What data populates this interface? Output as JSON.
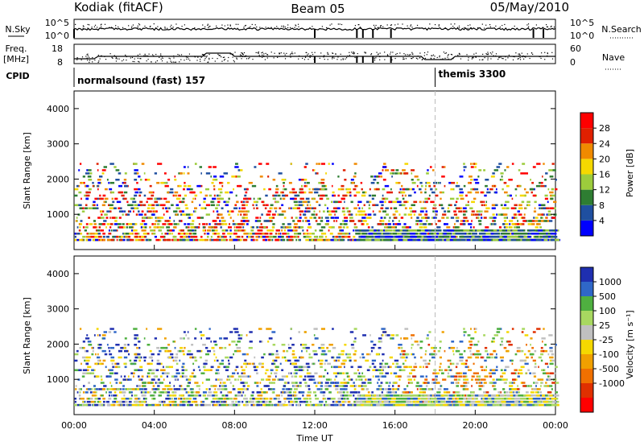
{
  "header": {
    "station": "Kodiak (fitACF)",
    "beam": "Beam 05",
    "date": "05/May/2010"
  },
  "strip_nsky": {
    "left_label": "N.Sky",
    "right_label": "N.Search",
    "ticks_left": [
      "10^5",
      "10^0"
    ],
    "ticks_right": [
      "10^5",
      "10^0"
    ]
  },
  "strip_freq": {
    "left_label_1": "Freq.",
    "left_label_2": "[MHz]",
    "right_label": "Nave",
    "ticks_left": [
      "18",
      "8"
    ],
    "ticks_right": [
      "60",
      "0"
    ]
  },
  "cpid": {
    "label": "CPID",
    "mode_1": "normalsound (fast) 157",
    "mode_2": "themis 3300",
    "switch_time_h": 18.0
  },
  "colors": {
    "power": [
      "#0000ff",
      "#1f4fa0",
      "#2e7d32",
      "#9ccc3c",
      "#f5d800",
      "#f08a00",
      "#e02000",
      "#ff0000"
    ],
    "velocity": [
      "#1f2fb0",
      "#2f67c8",
      "#4fb040",
      "#a8d860",
      "#c0c0c0",
      "#f5d800",
      "#f0a000",
      "#f07000",
      "#e03000",
      "#ff0000"
    ]
  },
  "chart_data": [
    {
      "type": "heatmap",
      "panel": "power",
      "ylabel": "Slant Range [km]",
      "ylim": [
        0,
        4500
      ],
      "yticks": [
        "1000",
        "2000",
        "3000",
        "4000"
      ],
      "x_range_h": [
        0,
        24
      ],
      "colorbar_label": "Power [dB]",
      "colorbar_ticks": [
        "4",
        "8",
        "12",
        "16",
        "20",
        "24",
        "28"
      ]
    },
    {
      "type": "heatmap",
      "panel": "velocity",
      "ylabel": "Slant Range [km]",
      "ylim": [
        0,
        4500
      ],
      "yticks": [
        "1000",
        "2000",
        "3000",
        "4000"
      ],
      "x_range_h": [
        0,
        24
      ],
      "xlabel": "Time UT",
      "xticks": [
        "00:00",
        "04:00",
        "08:00",
        "12:00",
        "16:00",
        "20:00",
        "00:00"
      ],
      "colorbar_label": "Velocity [m s⁻¹]",
      "colorbar_ticks": [
        "1000",
        "500",
        "100",
        "25",
        "-25",
        "-100",
        "-500",
        "-1000"
      ]
    }
  ]
}
